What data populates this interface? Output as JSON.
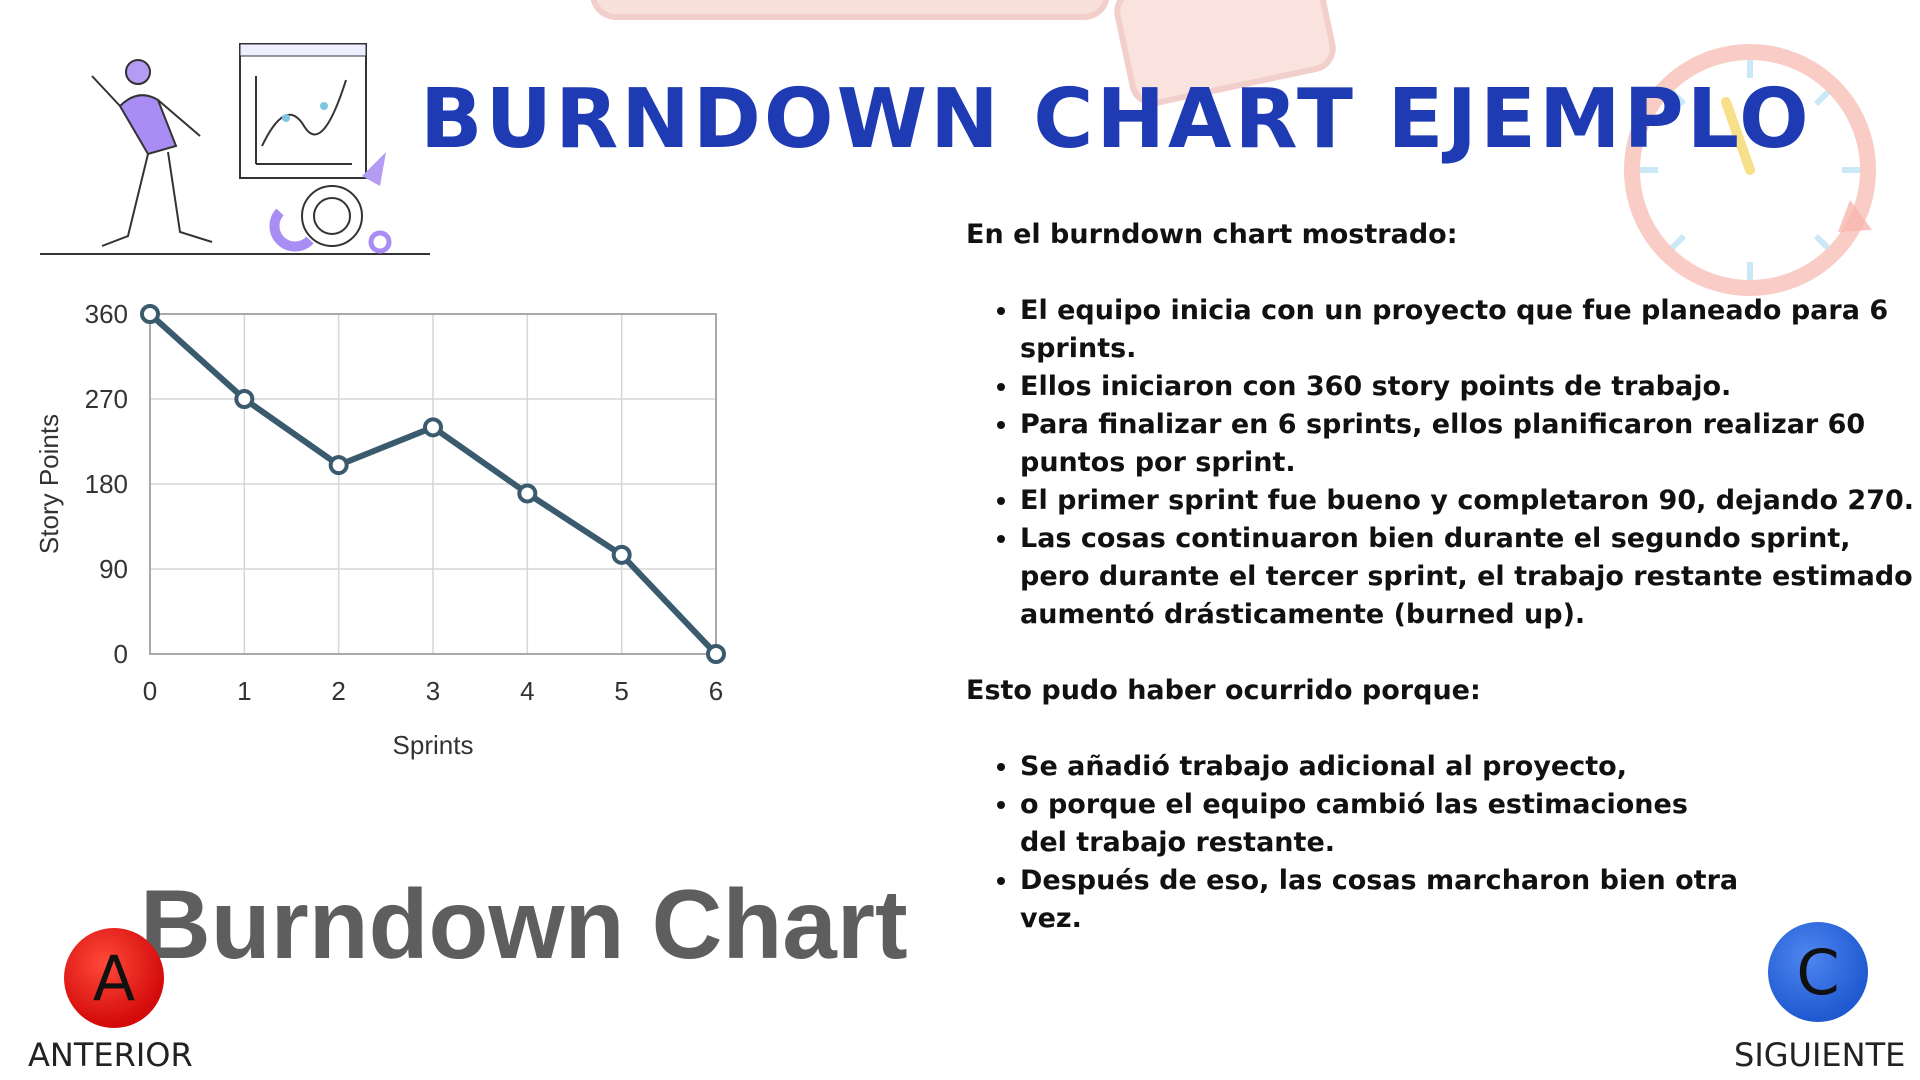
{
  "slide": {
    "title": "BURNDOWN CHART EJEMPLO",
    "chart_caption": "Burndown Chart",
    "intro": "En el burndown chart mostrado:",
    "bullets_1": [
      "El equipo inicia con un proyecto que fue planeado para 6 sprints.",
      "Ellos iniciaron con 360 story points de trabajo.",
      "Para finalizar en 6 sprints, ellos planificaron realizar 60 puntos por sprint.",
      "El primer sprint fue bueno y completaron 90, dejando 270.",
      "Las cosas continuaron bien durante el segundo sprint, pero durante el tercer sprint, el trabajo restante estimado aumentó drásticamente (burned up)."
    ],
    "reason_intro": "Esto pudo haber ocurrido porque:",
    "bullets_2": [
      "Se añadió trabajo adicional al proyecto,",
      "o porque el equipo cambió las estimaciones del trabajo restante.",
      "Después de eso, las cosas marcharon bien otra vez."
    ]
  },
  "nav": {
    "prev_letter": "A",
    "prev_label": "ANTERIOR",
    "next_letter": "C",
    "next_label": "SIGUIENTE"
  },
  "colors": {
    "title": "#1f3bb3",
    "line": "#3a5a6e",
    "prev_button": "#d40b0b",
    "next_button": "#1f5ad0"
  },
  "chart_data": {
    "type": "line",
    "x": [
      0,
      1,
      2,
      3,
      4,
      5,
      6
    ],
    "values": [
      360,
      270,
      200,
      240,
      170,
      105,
      0
    ],
    "xlabel": "Sprints",
    "ylabel": "Story Points",
    "xticks": [
      "0",
      "1",
      "2",
      "3",
      "4",
      "5",
      "6"
    ],
    "yticks": [
      "0",
      "90",
      "180",
      "270",
      "360"
    ],
    "xlim": [
      0,
      6
    ],
    "ylim": [
      0,
      360
    ],
    "grid": true
  }
}
